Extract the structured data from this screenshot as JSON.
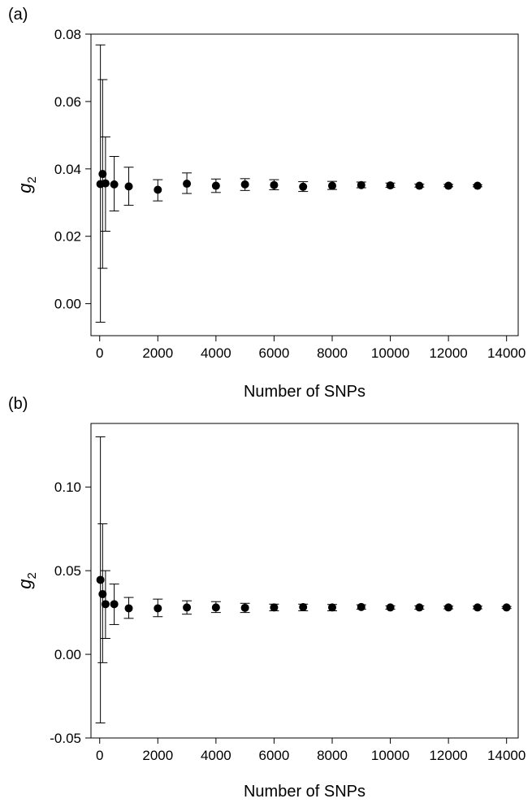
{
  "chart_data": [
    {
      "type": "scatter",
      "panel_label": "(a)",
      "title": "",
      "xlabel": "Number of SNPs",
      "ylabel": "g",
      "ylabel_subscript": "2",
      "xlim": [
        -300,
        14400
      ],
      "ylim": [
        -0.0095,
        0.08
      ],
      "xticks": [
        0,
        2000,
        4000,
        6000,
        8000,
        10000,
        12000,
        14000
      ],
      "xtick_labels": [
        "0",
        "2000",
        "4000",
        "6000",
        "8000",
        "10000",
        "12000",
        "14000"
      ],
      "yticks": [
        0.0,
        0.02,
        0.04,
        0.06,
        0.08
      ],
      "ytick_labels": [
        "0.00",
        "0.02",
        "0.04",
        "0.06",
        "0.08"
      ],
      "grid": false,
      "legend": "none",
      "series": [
        {
          "x": [
            25,
            100,
            200,
            500,
            1000,
            2000,
            3000,
            4000,
            5000,
            6000,
            7000,
            8000,
            9000,
            10000,
            11000,
            12000,
            13000
          ],
          "y": [
            0.0355,
            0.0385,
            0.0357,
            0.0354,
            0.0348,
            0.0338,
            0.0356,
            0.035,
            0.0354,
            0.0352,
            0.0347,
            0.035,
            0.0352,
            0.0351,
            0.035,
            0.035,
            0.035
          ],
          "y_lower": [
            -0.0055,
            0.0105,
            0.0215,
            0.0275,
            0.0292,
            0.0305,
            0.0327,
            0.033,
            0.0336,
            0.0338,
            0.0333,
            0.0339,
            0.0344,
            0.0345,
            0.0346,
            0.0347,
            0.0347
          ],
          "y_upper": [
            0.0768,
            0.0665,
            0.0495,
            0.0437,
            0.0405,
            0.0368,
            0.0388,
            0.037,
            0.0371,
            0.0368,
            0.0362,
            0.0363,
            0.0361,
            0.0358,
            0.0355,
            0.0354,
            0.0353
          ]
        }
      ]
    },
    {
      "type": "scatter",
      "panel_label": "(b)",
      "title": "",
      "xlabel": "Number of SNPs",
      "ylabel": "g",
      "ylabel_subscript": "2",
      "xlim": [
        -300,
        14400
      ],
      "ylim": [
        -0.05,
        0.138
      ],
      "xticks": [
        0,
        2000,
        4000,
        6000,
        8000,
        10000,
        12000,
        14000
      ],
      "xtick_labels": [
        "0",
        "2000",
        "4000",
        "6000",
        "8000",
        "10000",
        "12000",
        "14000"
      ],
      "yticks": [
        -0.05,
        0.0,
        0.05,
        0.1
      ],
      "ytick_labels": [
        "-0.05",
        "0.00",
        "0.05",
        "0.10"
      ],
      "grid": false,
      "legend": "none",
      "series": [
        {
          "x": [
            25,
            100,
            200,
            500,
            1000,
            2000,
            3000,
            4000,
            5000,
            6000,
            7000,
            8000,
            9000,
            10000,
            11000,
            12000,
            13000,
            14000
          ],
          "y": [
            0.0445,
            0.036,
            0.03,
            0.03,
            0.0275,
            0.0275,
            0.028,
            0.028,
            0.0278,
            0.028,
            0.0282,
            0.028,
            0.0283,
            0.028,
            0.028,
            0.028,
            0.028,
            0.028
          ],
          "y_lower": [
            -0.041,
            -0.005,
            0.0095,
            0.0178,
            0.0215,
            0.0225,
            0.024,
            0.025,
            0.025,
            0.026,
            0.026,
            0.026,
            0.027,
            0.027,
            0.027,
            0.0272,
            0.0272,
            0.0274
          ],
          "y_upper": [
            0.13,
            0.078,
            0.05,
            0.042,
            0.034,
            0.033,
            0.032,
            0.0315,
            0.0305,
            0.03,
            0.03,
            0.0298,
            0.0296,
            0.029,
            0.029,
            0.0288,
            0.0288,
            0.0286
          ]
        }
      ]
    }
  ]
}
